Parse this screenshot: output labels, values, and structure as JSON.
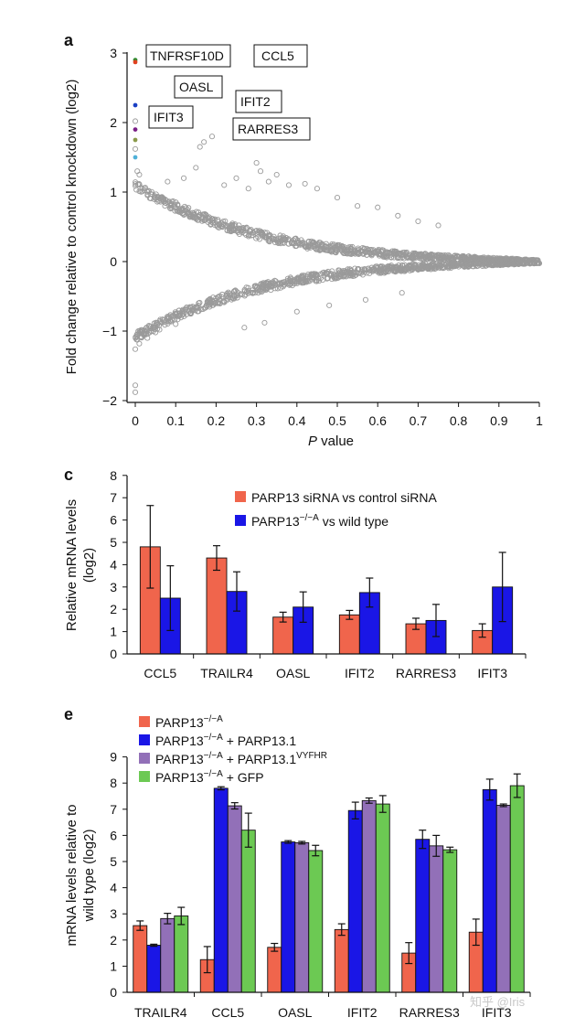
{
  "colors": {
    "axis": "#111111",
    "scatter_point": "#9a9a9a",
    "red_bar": "#f0654c",
    "blue_bar": "#1a16e6",
    "purple_bar": "#9270b8",
    "green_bar": "#6cc953"
  },
  "watermark": "知乎 @Iris",
  "chart_data": [
    {
      "panel": "a",
      "type": "scatter",
      "xlabel_italic": "P",
      "xlabel_rest": " value",
      "ylabel": "Fold change relative to control knockdown (log2)",
      "xlim": [
        0,
        1
      ],
      "ylim": [
        -2,
        3
      ],
      "xticks": [
        "0",
        "0.1",
        "0.2",
        "0.3",
        "0.4",
        "0.5",
        "0.6",
        "0.7",
        "0.8",
        "0.9",
        "1"
      ],
      "yticks": [
        "−2",
        "−1",
        "0",
        "1",
        "2",
        "3"
      ],
      "background_cloud": {
        "description": "thousands of grey points forming a sideways V converging at (1, 0)",
        "upper_envelope": "y ≈ 0.25 + 0.65·(1−p)^2 .. 0.02 + 0.3·(1−p)",
        "lower_envelope": "mirror below zero"
      },
      "highlighted_genes": [
        {
          "gene": "TNFRSF10D",
          "p": 0.0,
          "log2fc": 2.9,
          "color": "#2e8b2e",
          "text_color": "#2e8b2e"
        },
        {
          "gene": "CCL5",
          "p": 0.0,
          "log2fc": 2.87,
          "color": "#e0401f",
          "text_color": "#e0401f"
        },
        {
          "gene": "OASL",
          "p": 0.0,
          "log2fc": 2.25,
          "color": "#1a3fc4",
          "text_color": "#1a3fc4"
        },
        {
          "gene": "IFIT2",
          "p": 0.0,
          "log2fc": 1.9,
          "color": "#7a1f86",
          "text_color": "#7a1f86"
        },
        {
          "gene": "RARRES3",
          "p": 0.0,
          "log2fc": 1.75,
          "color": "#8a9a4a",
          "text_color": "#8a9a4a"
        },
        {
          "gene": "IFIT3",
          "p": 0.0,
          "log2fc": 1.5,
          "color": "#4fb0d8",
          "text_color": "#4fb0d8"
        }
      ],
      "extra_points": [
        {
          "p": 0.0,
          "log2fc": 2.02
        },
        {
          "p": 0.0,
          "log2fc": 1.62
        },
        {
          "p": 0.0,
          "log2fc": -1.78
        },
        {
          "p": 0.0,
          "log2fc": -1.88
        },
        {
          "p": 0.0,
          "log2fc": -1.26
        },
        {
          "p": 0.01,
          "log2fc": -1.18
        },
        {
          "p": 0.005,
          "log2fc": 1.3
        },
        {
          "p": 0.01,
          "log2fc": 1.25
        },
        {
          "p": 0.17,
          "log2fc": 1.72
        },
        {
          "p": 0.16,
          "log2fc": 1.65
        },
        {
          "p": 0.19,
          "log2fc": 1.8
        },
        {
          "p": 0.3,
          "log2fc": 1.42
        },
        {
          "p": 0.31,
          "log2fc": 1.3
        },
        {
          "p": 0.35,
          "log2fc": 1.25
        },
        {
          "p": 0.33,
          "log2fc": 1.15
        },
        {
          "p": 0.38,
          "log2fc": 1.1
        },
        {
          "p": 0.42,
          "log2fc": 1.12
        },
        {
          "p": 0.45,
          "log2fc": 1.05
        },
        {
          "p": 0.5,
          "log2fc": 0.92
        },
        {
          "p": 0.55,
          "log2fc": 0.8
        },
        {
          "p": 0.6,
          "log2fc": 0.78
        },
        {
          "p": 0.65,
          "log2fc": 0.66
        },
        {
          "p": 0.7,
          "log2fc": 0.58
        },
        {
          "p": 0.75,
          "log2fc": 0.52
        },
        {
          "p": 0.25,
          "log2fc": 1.2
        },
        {
          "p": 0.28,
          "log2fc": 1.05
        },
        {
          "p": 0.22,
          "log2fc": 1.1
        },
        {
          "p": 0.12,
          "log2fc": 1.2
        },
        {
          "p": 0.08,
          "log2fc": 1.15
        },
        {
          "p": 0.15,
          "log2fc": 1.35
        },
        {
          "p": 0.02,
          "log2fc": -1.05
        },
        {
          "p": 0.04,
          "log2fc": -1.0
        },
        {
          "p": 0.06,
          "log2fc": -0.98
        },
        {
          "p": 0.1,
          "log2fc": -0.9
        },
        {
          "p": 0.27,
          "log2fc": -0.95
        },
        {
          "p": 0.32,
          "log2fc": -0.88
        },
        {
          "p": 0.03,
          "log2fc": -1.1
        },
        {
          "p": 0.05,
          "log2fc": -1.02
        },
        {
          "p": 0.4,
          "log2fc": -0.72
        },
        {
          "p": 0.48,
          "log2fc": -0.63
        },
        {
          "p": 0.57,
          "log2fc": -0.55
        },
        {
          "p": 0.66,
          "log2fc": -0.45
        }
      ]
    },
    {
      "panel": "c",
      "type": "bar",
      "ylabel_line1": "Relative mRNA levels",
      "ylabel_line2": "(log2)",
      "ylim": [
        0,
        8
      ],
      "yticks": [
        "0",
        "1",
        "2",
        "3",
        "4",
        "5",
        "6",
        "7",
        "8"
      ],
      "categories": [
        "CCL5",
        "TRAILR4",
        "OASL",
        "IFIT2",
        "RARRES3",
        "IFIT3"
      ],
      "series": [
        {
          "name_main": "PARP13 siRNA vs control siRNA",
          "name_sup": "",
          "name_tail": "",
          "color": "#f0654c",
          "values": [
            4.8,
            4.3,
            1.65,
            1.75,
            1.35,
            1.05
          ],
          "errors": [
            1.85,
            0.55,
            0.22,
            0.2,
            0.25,
            0.3
          ]
        },
        {
          "name_main": "PARP13",
          "name_sup": "−/−A",
          "name_tail": " vs wild type",
          "color": "#1a16e6",
          "values": [
            2.5,
            2.8,
            2.1,
            2.75,
            1.5,
            3.0
          ],
          "errors": [
            1.45,
            0.88,
            0.68,
            0.65,
            0.72,
            1.55
          ]
        }
      ]
    },
    {
      "panel": "e",
      "type": "bar",
      "ylabel_line1": "mRNA levels relative to",
      "ylabel_line2": "wild type (log2)",
      "ylim": [
        0,
        9
      ],
      "yticks": [
        "0",
        "1",
        "2",
        "3",
        "4",
        "5",
        "6",
        "7",
        "8",
        "9"
      ],
      "categories": [
        "TRAILR4",
        "CCL5",
        "OASL",
        "IFIT2",
        "RARRES3",
        "IFIT3"
      ],
      "series": [
        {
          "name_main": "PARP13",
          "name_sup": "−/−A",
          "name_tail": "",
          "name_sup2": "",
          "color": "#f0654c",
          "values": [
            2.55,
            1.25,
            1.72,
            2.4,
            1.5,
            2.3
          ],
          "errors": [
            0.18,
            0.5,
            0.15,
            0.22,
            0.4,
            0.5
          ]
        },
        {
          "name_main": "PARP13",
          "name_sup": "−/−A",
          "name_tail": " + PARP13.1",
          "name_sup2": "",
          "color": "#1a16e6",
          "values": [
            1.8,
            7.8,
            5.75,
            6.95,
            5.85,
            7.75
          ],
          "errors": [
            0.04,
            0.06,
            0.05,
            0.32,
            0.35,
            0.4
          ]
        },
        {
          "name_main": "PARP13",
          "name_sup": "−/−A",
          "name_tail": " + PARP13.1",
          "name_sup2": "VYFHR",
          "color": "#9270b8",
          "values": [
            2.82,
            7.13,
            5.72,
            7.33,
            5.6,
            7.15
          ],
          "errors": [
            0.2,
            0.12,
            0.05,
            0.1,
            0.4,
            0.05
          ]
        },
        {
          "name_main": "PARP13",
          "name_sup": "−/−A",
          "name_tail": " + GFP",
          "name_sup2": "",
          "color": "#6cc953",
          "values": [
            2.92,
            6.2,
            5.42,
            7.2,
            5.45,
            7.9
          ],
          "errors": [
            0.33,
            0.65,
            0.2,
            0.32,
            0.1,
            0.45
          ]
        }
      ]
    }
  ],
  "panels": {
    "a": {
      "label": "a"
    },
    "c": {
      "label": "c"
    },
    "e": {
      "label": "e"
    }
  }
}
